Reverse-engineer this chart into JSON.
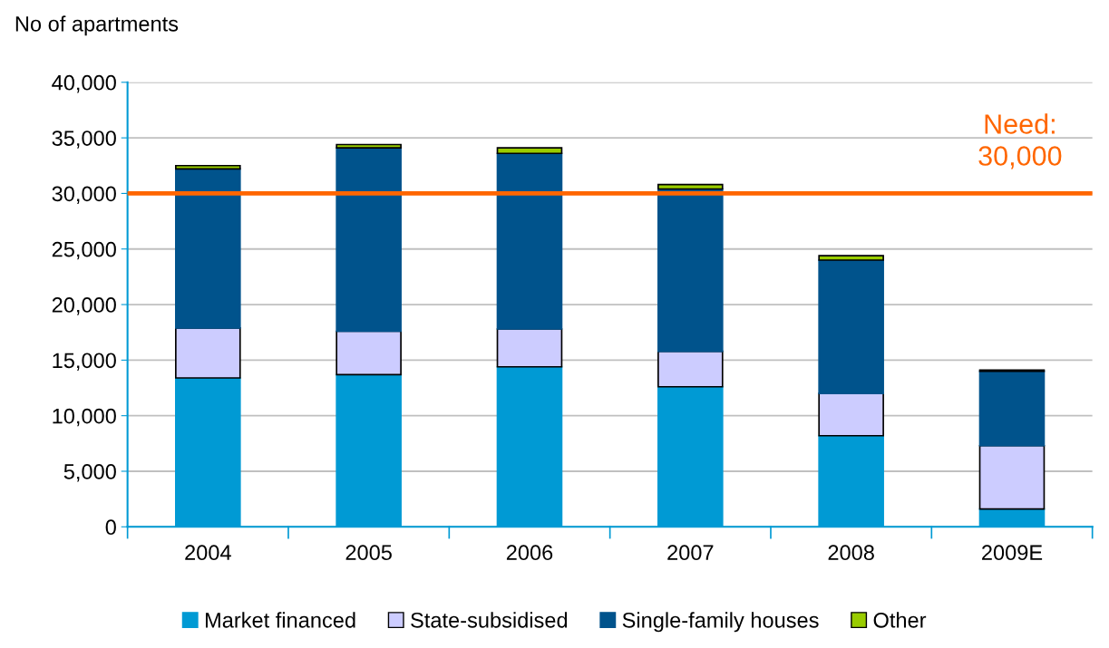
{
  "chart_data": {
    "type": "bar",
    "stacked": true,
    "ylabel": "No of apartments",
    "categories": [
      "2004",
      "2005",
      "2006",
      "2007",
      "2008",
      "2009E"
    ],
    "series": [
      {
        "name": "Market financed",
        "color": "#009ad4",
        "values": [
          13400,
          13700,
          14400,
          12600,
          8200,
          1600
        ]
      },
      {
        "name": "State-subsidised",
        "color": "#ccccff",
        "values": [
          4500,
          3900,
          3400,
          3200,
          3800,
          5700
        ]
      },
      {
        "name": "Single-family houses",
        "color": "#00538c",
        "values": [
          14300,
          16500,
          15800,
          14600,
          12000,
          6700
        ]
      },
      {
        "name": "Other",
        "color": "#99cc00",
        "values": [
          300,
          300,
          500,
          400,
          400,
          100
        ]
      }
    ],
    "ylim": [
      0,
      40000
    ],
    "yticks": [
      {
        "value": 0,
        "label": "0"
      },
      {
        "value": 5000,
        "label": "5,000"
      },
      {
        "value": 10000,
        "label": "10,000"
      },
      {
        "value": 15000,
        "label": "15,000"
      },
      {
        "value": 20000,
        "label": "20,000"
      },
      {
        "value": 25000,
        "label": "25,000"
      },
      {
        "value": 30000,
        "label": "30,000"
      },
      {
        "value": 35000,
        "label": "35,000"
      },
      {
        "value": 40000,
        "label": "40,000"
      }
    ],
    "ref_lines": [
      {
        "axis": "y",
        "value": 30000,
        "label": "Need:\n30,000",
        "color": "#ff6600"
      }
    ],
    "grid": "y",
    "legend": "bottom"
  }
}
